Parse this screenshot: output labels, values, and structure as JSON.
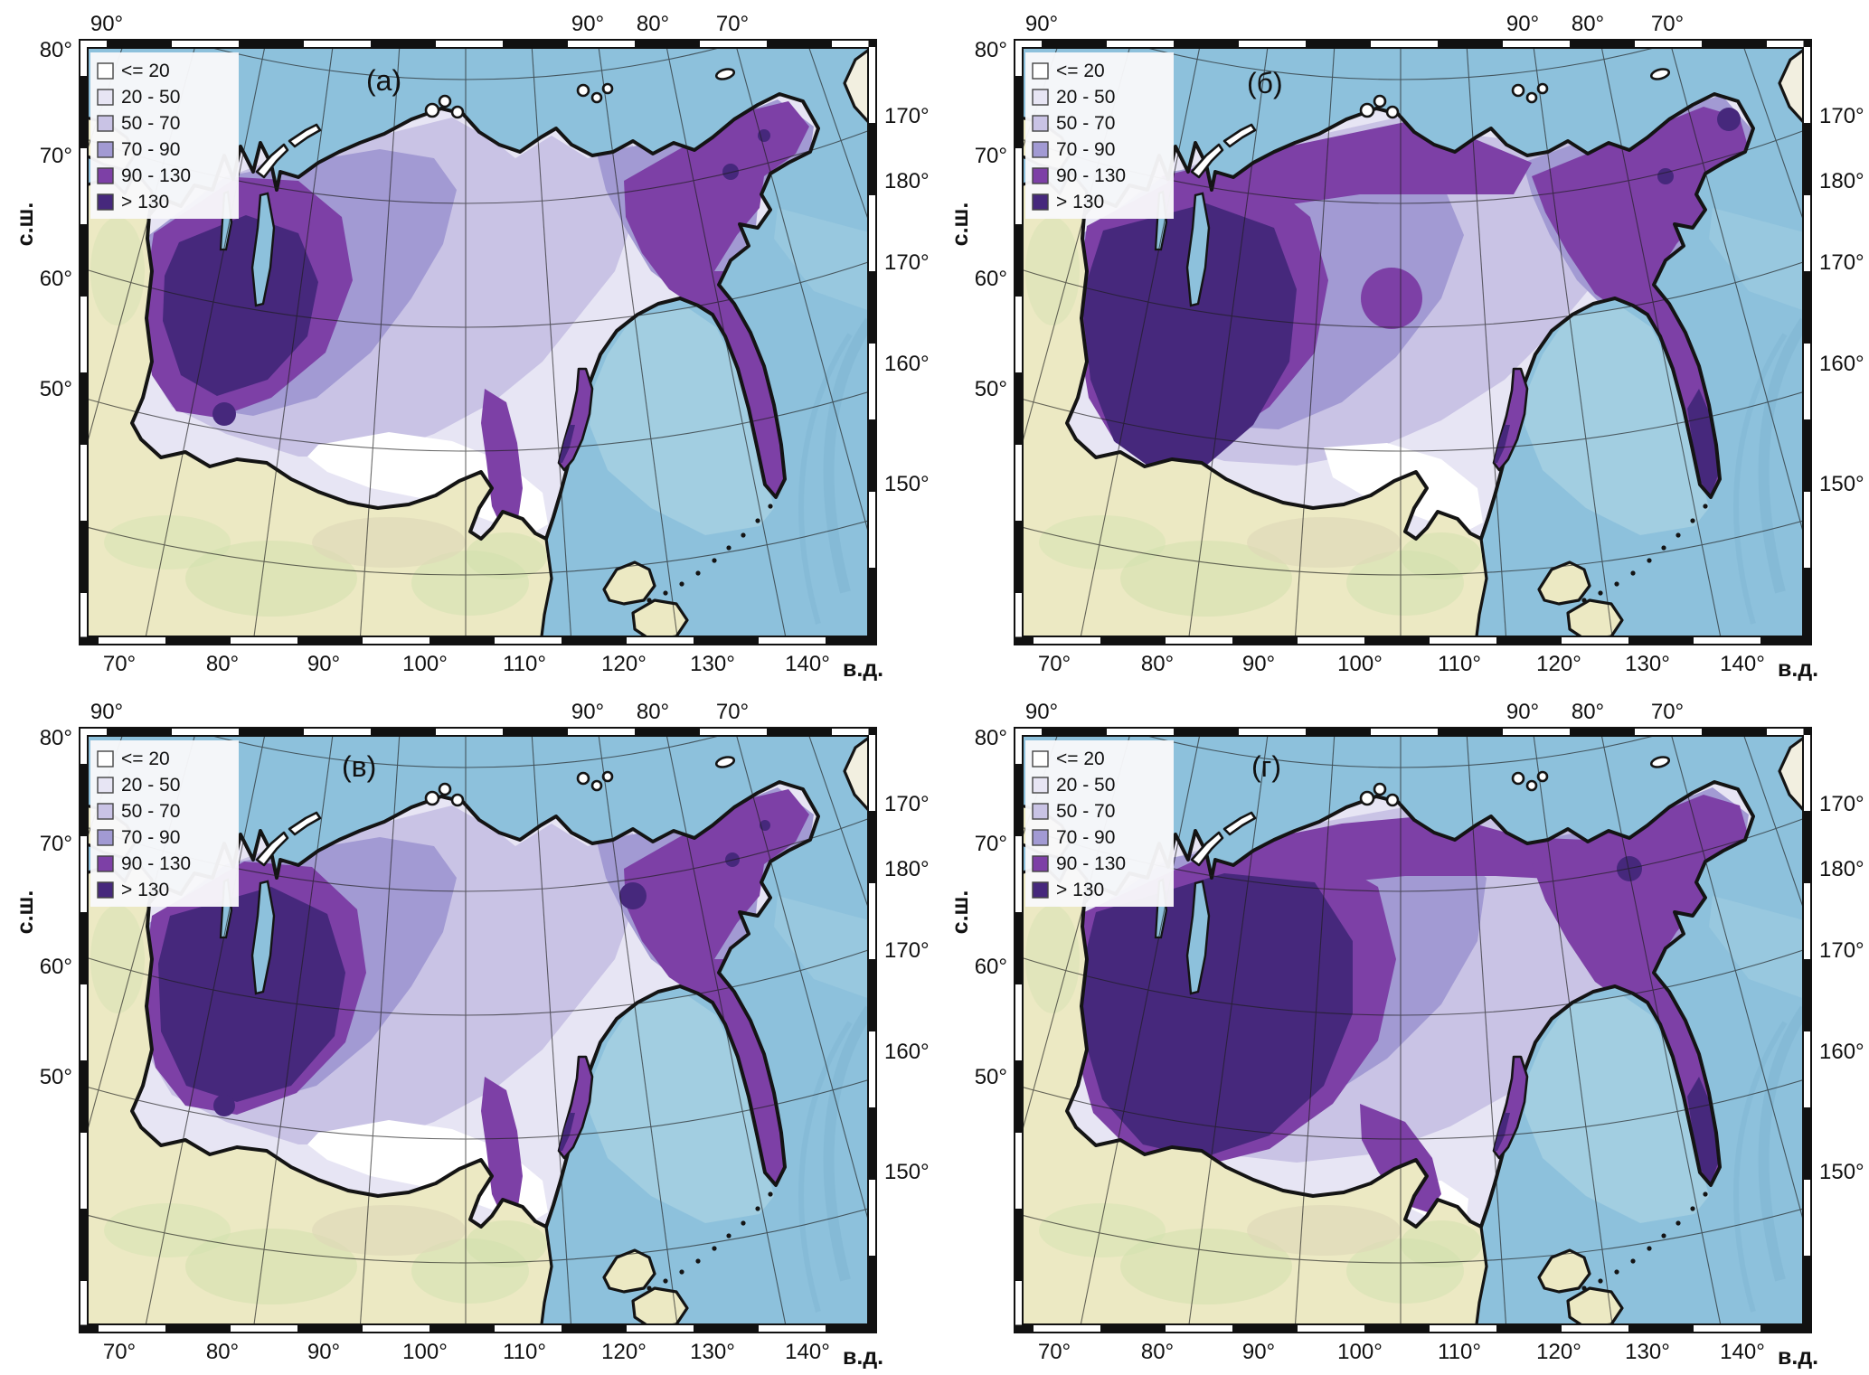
{
  "figure": {
    "type": "map",
    "description_note": "",
    "panels": [
      {
        "id": "a",
        "label": "(а)"
      },
      {
        "id": "b",
        "label": "(б)"
      },
      {
        "id": "v",
        "label": "(в)"
      },
      {
        "id": "g",
        "label": "(г)"
      }
    ],
    "legend_entries": [
      {
        "label": "<= 20",
        "color": "#ffffff"
      },
      {
        "label": "20 - 50",
        "color": "#e7e5f4"
      },
      {
        "label": "50 - 70",
        "color": "#c9c3e5"
      },
      {
        "label": "70 - 90",
        "color": "#a29ad3"
      },
      {
        "label": "90 - 130",
        "color": "#7d40a6"
      },
      {
        "label": "> 130",
        "color": "#46287c"
      }
    ],
    "axis": {
      "bottom_ticks": [
        "70°",
        "80°",
        "90°",
        "100°",
        "110°",
        "120°",
        "130°",
        "140°"
      ],
      "bottom_label": "в.д.",
      "left_ticks": [
        "80°",
        "70°",
        "60°",
        "50°"
      ],
      "left_label": "с.ш.",
      "right_ticks": [
        "170°",
        "180°",
        "170°",
        "160°",
        "150°"
      ],
      "top_ticks": [
        "90°",
        "90°",
        "80°",
        "70°"
      ]
    },
    "colors": {
      "ocean": "#8dc1dc",
      "ocean_shallow": "#a6d0e2",
      "land_foreign": "#ece9c3",
      "land_green": "#cfe0ac",
      "land_relief": "#ded7b8",
      "coastline": "#141414",
      "graticule": "#1c1c1c",
      "legend_bg": "#f8f8fa",
      "text": "#111111"
    }
  }
}
